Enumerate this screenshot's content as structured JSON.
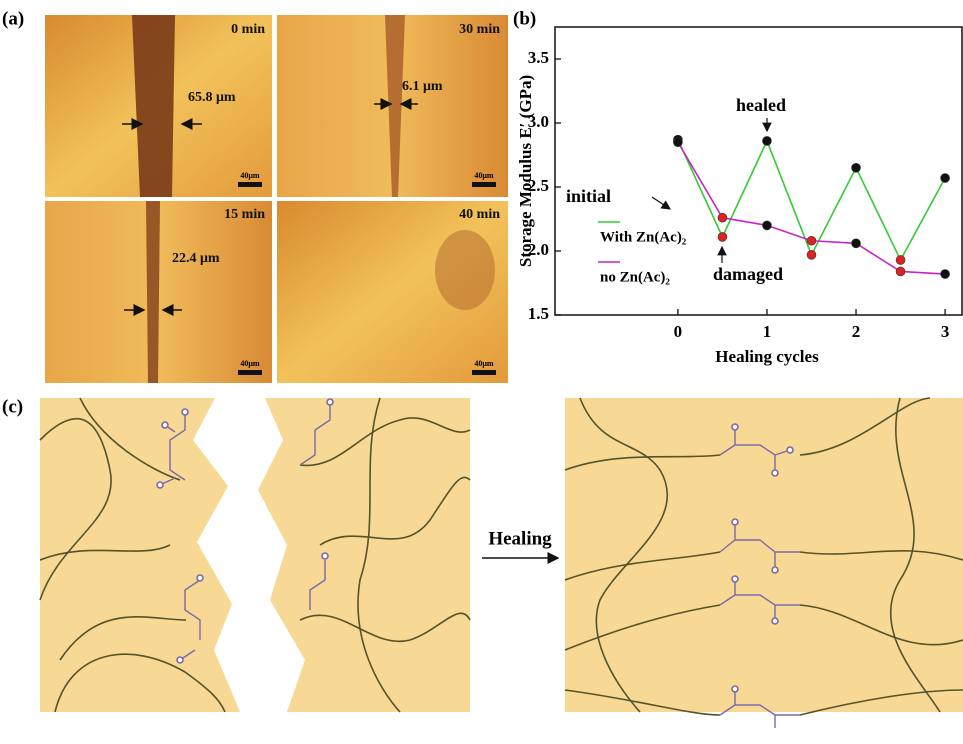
{
  "panel_labels": [
    "(a)",
    "(b)",
    "(c)"
  ],
  "micrographs": [
    {
      "time": "0 min",
      "width": "65.8 μm",
      "scale": "40μm"
    },
    {
      "time": "30 min",
      "width": "6.1 μm",
      "scale": "40μm"
    },
    {
      "time": "15 min",
      "width": "22.4 μm",
      "scale": "40μm"
    },
    {
      "time": "40 min",
      "scale": "40μm"
    }
  ],
  "chart_data": {
    "type": "line",
    "x_label": "Healing cycles",
    "y_label": "Storage Modulus E′ (GPa)",
    "x": [
      0,
      0.5,
      1,
      1.5,
      2,
      2.5,
      3
    ],
    "series": [
      {
        "name": "With Zn(Ac)₂",
        "color": "#33cc33",
        "values": [
          2.87,
          2.11,
          2.86,
          1.97,
          2.65,
          1.93,
          2.57
        ]
      },
      {
        "name": "no Zn(Ac)₂",
        "color": "#cc22cc",
        "values": [
          2.85,
          2.26,
          2.2,
          2.08,
          2.06,
          1.84,
          1.82
        ]
      }
    ],
    "point_colors": [
      "#111111",
      "#dd2222",
      "#111111",
      "#dd2222",
      "#111111",
      "#dd2222",
      "#111111"
    ],
    "xlim": [
      -1.38,
      3.19
    ],
    "xticks": [
      0,
      1,
      2,
      3
    ],
    "ylim": [
      1.5,
      3.75
    ],
    "yticks": [
      1.5,
      {
        "value": 2,
        "label": "2.0"
      },
      2.5,
      {
        "value": 3,
        "label": "3.0"
      },
      3.5
    ],
    "annotations": [
      "initial",
      "healed",
      "damaged"
    ]
  },
  "schematic": {
    "arrow_label": "Healing"
  }
}
